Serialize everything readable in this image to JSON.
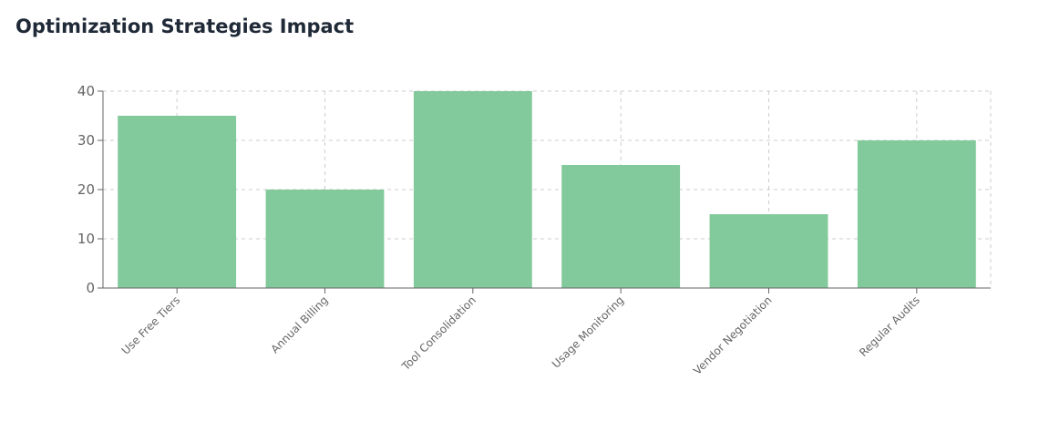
{
  "chart_data": {
    "type": "bar",
    "title": "Optimization Strategies Impact",
    "categories": [
      "Use Free Tiers",
      "Annual Billing",
      "Tool Consolidation",
      "Usage Monitoring",
      "Vendor Negotiation",
      "Regular Audits"
    ],
    "values": [
      35,
      20,
      40,
      25,
      15,
      30
    ],
    "ylim": [
      0,
      40
    ],
    "yticks": [
      0,
      10,
      20,
      30,
      40
    ],
    "xlabel": "",
    "ylabel": "",
    "grid": true,
    "legend": "none",
    "bar_color": "#82c99b"
  }
}
